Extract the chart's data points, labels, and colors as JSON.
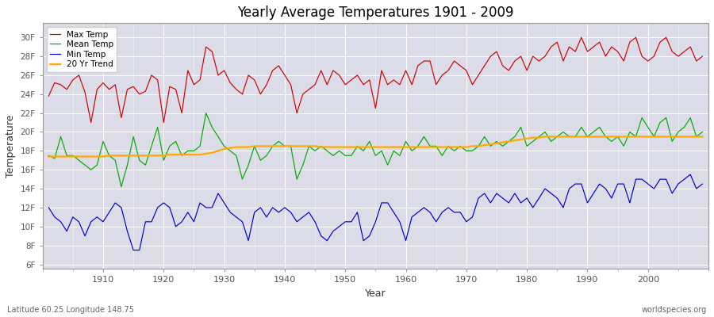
{
  "title": "Yearly Average Temperatures 1901 - 2009",
  "xlabel": "Year",
  "ylabel": "Temperature",
  "lat_lon_label": "Latitude 60.25 Longitude 148.75",
  "source_label": "worldspecies.org",
  "year_start": 1901,
  "year_end": 2009,
  "yticks": [
    6,
    8,
    10,
    12,
    14,
    16,
    18,
    20,
    22,
    24,
    26,
    28,
    30
  ],
  "ytick_labels": [
    "6F",
    "8F",
    "10F",
    "12F",
    "14F",
    "16F",
    "18F",
    "20F",
    "22F",
    "24F",
    "26F",
    "28F",
    "30F"
  ],
  "ylim": [
    5.5,
    31.5
  ],
  "xlim": [
    1900,
    2010
  ],
  "colors": {
    "max_temp": "#cc0000",
    "mean_temp": "#00aa00",
    "min_temp": "#0000cc",
    "trend": "#ffaa00",
    "fig_bg": "#ffffff",
    "plot_bg": "#dcdce8"
  },
  "legend": {
    "max_label": "Max Temp",
    "mean_label": "Mean Temp",
    "min_label": "Min Temp",
    "trend_label": "20 Yr Trend"
  },
  "max_temp": [
    23.8,
    25.2,
    25.0,
    24.5,
    25.5,
    26.0,
    24.2,
    21.0,
    24.5,
    25.2,
    24.5,
    25.0,
    21.5,
    24.5,
    24.8,
    24.0,
    24.3,
    26.0,
    25.5,
    21.0,
    24.8,
    24.5,
    22.0,
    26.5,
    25.0,
    25.5,
    29.0,
    28.5,
    26.0,
    26.5,
    25.2,
    24.5,
    24.0,
    26.0,
    25.5,
    24.0,
    25.0,
    26.5,
    27.0,
    26.0,
    25.0,
    22.0,
    24.0,
    24.5,
    25.0,
    26.5,
    25.0,
    26.5,
    26.0,
    25.0,
    25.5,
    26.0,
    25.0,
    25.5,
    22.5,
    26.5,
    25.0,
    25.5,
    25.0,
    26.5,
    25.0,
    27.0,
    27.5,
    27.5,
    25.0,
    26.0,
    26.5,
    27.5,
    27.0,
    26.5,
    25.0,
    26.0,
    27.0,
    28.0,
    28.5,
    27.0,
    26.5,
    27.5,
    28.0,
    26.5,
    28.0,
    27.5,
    28.0,
    29.0,
    29.5,
    27.5,
    29.0,
    28.5,
    30.0,
    28.5,
    29.0,
    29.5,
    28.0,
    29.0,
    28.5,
    27.5,
    29.5,
    30.0,
    28.0,
    27.5,
    28.0,
    29.5,
    30.0,
    28.5,
    28.0,
    28.5,
    29.0,
    27.5,
    28.0
  ],
  "mean_temp": [
    17.5,
    17.2,
    19.5,
    17.5,
    17.5,
    17.0,
    16.5,
    16.0,
    16.5,
    19.0,
    17.5,
    17.0,
    14.2,
    16.5,
    19.5,
    17.0,
    16.5,
    18.5,
    20.5,
    17.0,
    18.5,
    19.0,
    17.5,
    18.0,
    18.0,
    18.5,
    22.0,
    20.5,
    19.5,
    18.5,
    18.0,
    17.5,
    15.0,
    16.5,
    18.5,
    17.0,
    17.5,
    18.5,
    19.0,
    18.5,
    18.5,
    15.0,
    16.5,
    18.5,
    18.0,
    18.5,
    18.0,
    17.5,
    18.0,
    17.5,
    17.5,
    18.5,
    18.0,
    19.0,
    17.5,
    18.0,
    16.5,
    18.0,
    17.5,
    19.0,
    18.0,
    18.5,
    19.5,
    18.5,
    18.5,
    17.5,
    18.5,
    18.0,
    18.5,
    18.0,
    18.0,
    18.5,
    19.5,
    18.5,
    19.0,
    18.5,
    19.0,
    19.5,
    20.5,
    18.5,
    19.0,
    19.5,
    20.0,
    19.0,
    19.5,
    20.0,
    19.5,
    19.5,
    20.5,
    19.5,
    20.0,
    20.5,
    19.5,
    19.0,
    19.5,
    18.5,
    20.0,
    19.5,
    21.5,
    20.5,
    19.5,
    21.0,
    21.5,
    19.0,
    20.0,
    20.5,
    21.5,
    19.5,
    20.0
  ],
  "min_temp": [
    12.0,
    11.0,
    10.5,
    9.5,
    11.0,
    10.5,
    9.0,
    10.5,
    11.0,
    10.5,
    11.5,
    12.5,
    12.0,
    9.5,
    7.5,
    7.5,
    10.5,
    10.5,
    12.0,
    12.5,
    12.0,
    10.0,
    10.5,
    11.5,
    10.5,
    12.5,
    12.0,
    12.0,
    13.5,
    12.5,
    11.5,
    11.0,
    10.5,
    8.5,
    11.5,
    12.0,
    11.0,
    12.0,
    11.5,
    12.0,
    11.5,
    10.5,
    11.0,
    11.5,
    10.5,
    9.0,
    8.5,
    9.5,
    10.0,
    10.5,
    10.5,
    11.5,
    8.5,
    9.0,
    10.5,
    12.5,
    12.5,
    11.5,
    10.5,
    8.5,
    11.0,
    11.5,
    12.0,
    11.5,
    10.5,
    11.5,
    12.0,
    11.5,
    11.5,
    10.5,
    11.0,
    13.0,
    13.5,
    12.5,
    13.5,
    13.0,
    12.5,
    13.5,
    12.5,
    13.0,
    12.0,
    13.0,
    14.0,
    13.5,
    13.0,
    12.0,
    14.0,
    14.5,
    14.5,
    12.5,
    13.5,
    14.5,
    14.0,
    13.0,
    14.5,
    14.5,
    12.5,
    15.0,
    15.0,
    14.5,
    14.0,
    15.0,
    15.0,
    13.5,
    14.5,
    15.0,
    15.5,
    14.0,
    14.5
  ],
  "trend": [
    17.4,
    17.4,
    17.4,
    17.4,
    17.4,
    17.4,
    17.4,
    17.4,
    17.4,
    17.4,
    17.5,
    17.5,
    17.5,
    17.5,
    17.5,
    17.5,
    17.5,
    17.5,
    17.5,
    17.5,
    17.6,
    17.6,
    17.6,
    17.6,
    17.6,
    17.6,
    17.7,
    17.8,
    18.0,
    18.2,
    18.3,
    18.4,
    18.4,
    18.4,
    18.5,
    18.5,
    18.5,
    18.5,
    18.5,
    18.5,
    18.5,
    18.5,
    18.5,
    18.5,
    18.5,
    18.4,
    18.4,
    18.4,
    18.4,
    18.4,
    18.4,
    18.4,
    18.4,
    18.4,
    18.4,
    18.4,
    18.4,
    18.4,
    18.4,
    18.4,
    18.4,
    18.4,
    18.4,
    18.4,
    18.4,
    18.4,
    18.4,
    18.4,
    18.4,
    18.4,
    18.5,
    18.5,
    18.6,
    18.7,
    18.8,
    18.9,
    19.0,
    19.1,
    19.2,
    19.3,
    19.4,
    19.4,
    19.5,
    19.5,
    19.5,
    19.5,
    19.5,
    19.5,
    19.5,
    19.5,
    19.5,
    19.5,
    19.5,
    19.5,
    19.5,
    19.5,
    19.5,
    19.5,
    19.5,
    19.5,
    19.5,
    19.5,
    19.5,
    19.5,
    19.5,
    19.5,
    19.5,
    19.5,
    19.5
  ]
}
